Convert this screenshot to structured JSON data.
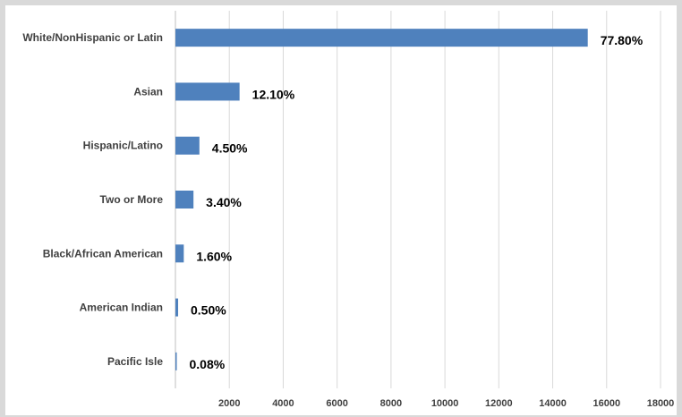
{
  "chart_data": {
    "type": "bar",
    "orientation": "horizontal",
    "categories": [
      "White/NonHispanic or Latin",
      "Asian",
      "Hispanic/Latino",
      "Two or More",
      "Black/African American",
      "American Indian",
      "Pacific Isle"
    ],
    "values": [
      15300,
      2380,
      890,
      670,
      310,
      100,
      18
    ],
    "data_labels": [
      "77.80%",
      "12.10%",
      "4.50%",
      "3.40%",
      "1.60%",
      "0.50%",
      "0.08%"
    ],
    "x_ticks": [
      "2000",
      "4000",
      "6000",
      "8000",
      "10000",
      "12000",
      "14000",
      "16000",
      "18000"
    ],
    "xlim": [
      0,
      18000
    ],
    "grid": true,
    "bar_color": "#4f81bd",
    "title": "",
    "xlabel": "",
    "ylabel": ""
  }
}
